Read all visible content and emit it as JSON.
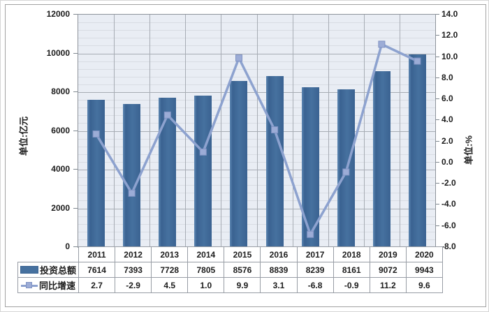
{
  "chart_data": {
    "type": "combo",
    "title": "",
    "categories": [
      "2011",
      "2012",
      "2013",
      "2014",
      "2015",
      "2016",
      "2017",
      "2018",
      "2019",
      "2020"
    ],
    "series": [
      {
        "name": "投资总额",
        "type": "bar",
        "axis": "left",
        "values": [
          7614,
          7393,
          7728,
          7805,
          8576,
          8839,
          8239,
          8161,
          9072,
          9943
        ],
        "labels": [
          "7614",
          "7393",
          "7728",
          "7805",
          "8576",
          "8839",
          "8239",
          "8161",
          "9072",
          "9943"
        ]
      },
      {
        "name": "同比增速",
        "type": "line",
        "axis": "right",
        "values": [
          2.7,
          -2.9,
          4.5,
          1.0,
          9.9,
          3.1,
          -6.8,
          -0.9,
          11.2,
          9.6
        ],
        "labels": [
          "2.7",
          "-2.9",
          "4.5",
          "1.0",
          "9.9",
          "3.1",
          "-6.8",
          "-0.9",
          "11.2",
          "9.6"
        ]
      }
    ],
    "axes": {
      "left": {
        "title": "单位:亿元",
        "min": 0,
        "max": 12000,
        "major_step": 2000,
        "minor_step": 400,
        "tick_labels": [
          "0",
          "2000",
          "4000",
          "6000",
          "8000",
          "10000",
          "12000"
        ]
      },
      "right": {
        "title": "单位:%",
        "min": -8,
        "max": 14,
        "major_step": 2,
        "tick_labels": [
          "-8.0",
          "-6.0",
          "-4.0",
          "-2.0",
          "0.0",
          "2.0",
          "4.0",
          "6.0",
          "8.0",
          "10.0",
          "12.0",
          "14.0"
        ]
      }
    },
    "legend_position": "table-left",
    "grid": true
  },
  "colors": {
    "bar_fill": "#46719f",
    "bar_fill_light": "#5d87b2",
    "bar_edge": "#3a6291",
    "line": "#8da2cf",
    "marker_fill": "#9cacd6",
    "marker_edge": "#8093c3",
    "plot_bg": "#e9edf4",
    "grid_minor": "#d8dce3",
    "grid_major": "#a7acb4",
    "plot_border": "#8d939b",
    "table_border": "#989da5",
    "text": "#1c1c1c",
    "frame_border": "#a3a3a3"
  }
}
